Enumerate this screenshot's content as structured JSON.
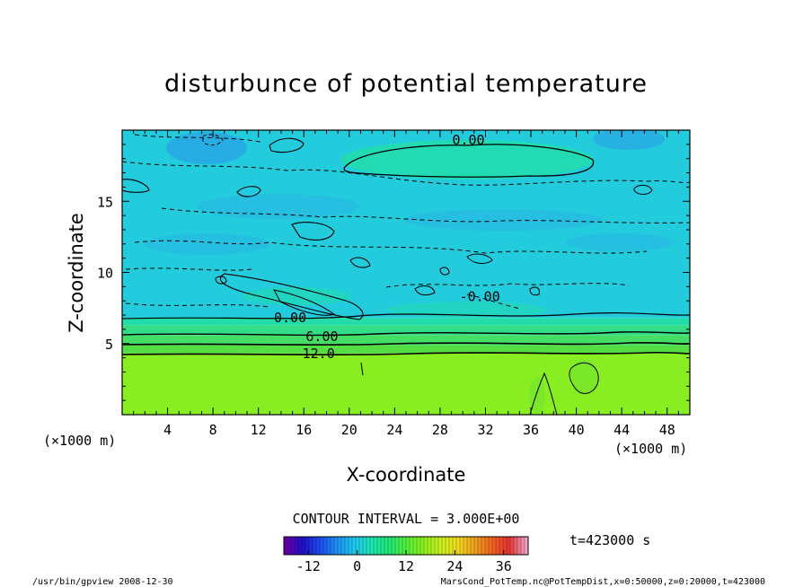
{
  "chart_data": {
    "type": "heatmap",
    "title": "disturbunce of potential temperature",
    "xlabel": "X-coordinate",
    "ylabel": "Z-coordinate",
    "x_unit_left": "(×1000 m)",
    "x_unit_right": "(×1000 m)",
    "xlim": [
      0,
      50
    ],
    "ylim": [
      0,
      20
    ],
    "x_ticks": [
      4,
      8,
      12,
      16,
      20,
      24,
      28,
      32,
      36,
      40,
      44,
      48
    ],
    "y_ticks": [
      5,
      10,
      15
    ],
    "contour_interval_text": "CONTOUR INTERVAL = 3.000E+00",
    "contour_labels": [
      {
        "text": "0.00",
        "x": 30.5,
        "z": 19.3
      },
      {
        "text": "-0.00",
        "x": 31.5,
        "z": 8.3
      },
      {
        "text": "0.00",
        "x": 14.8,
        "z": 6.8
      },
      {
        "text": "6.00",
        "x": 17.6,
        "z": 5.5
      },
      {
        "text": "12.0",
        "x": 17.3,
        "z": 4.3
      }
    ],
    "layers": [
      {
        "z_bottom": 0,
        "z_top": 4.3,
        "value": 19,
        "color": "#88ee22"
      },
      {
        "z_bottom": 4.3,
        "z_top": 4.9,
        "value": 13,
        "color": "#55dd44"
      },
      {
        "z_bottom": 4.9,
        "z_top": 5.6,
        "value": 9,
        "color": "#44dd66"
      },
      {
        "z_bottom": 5.6,
        "z_top": 6.3,
        "value": 5,
        "color": "#33dd88"
      },
      {
        "z_bottom": 6.3,
        "z_top": 6.8,
        "value": 2,
        "color": "#22ddaa"
      },
      {
        "z_bottom": 6.8,
        "z_top": 20,
        "value": -1,
        "color": "#22ccdd"
      }
    ],
    "colorbar": {
      "min": -18,
      "max": 42,
      "ticks": [
        -12,
        0,
        12,
        24,
        36
      ],
      "colors": [
        "#6600aa",
        "#1e10c8",
        "#1e4cf0",
        "#1e90f0",
        "#1ec8f0",
        "#1ee6b4",
        "#1ee678",
        "#50f03c",
        "#8cf01e",
        "#c8f01e",
        "#f0dc1e",
        "#f0a01e",
        "#f0641e",
        "#e63232",
        "#f0a0c8"
      ]
    },
    "time_label": "t=423000 s"
  },
  "footer": {
    "left": "/usr/bin/gpview   2008-12-30",
    "right": "MarsCond_PotTemp.nc@PotTempDist,x=0:50000,z=0:20000,t=423000"
  }
}
